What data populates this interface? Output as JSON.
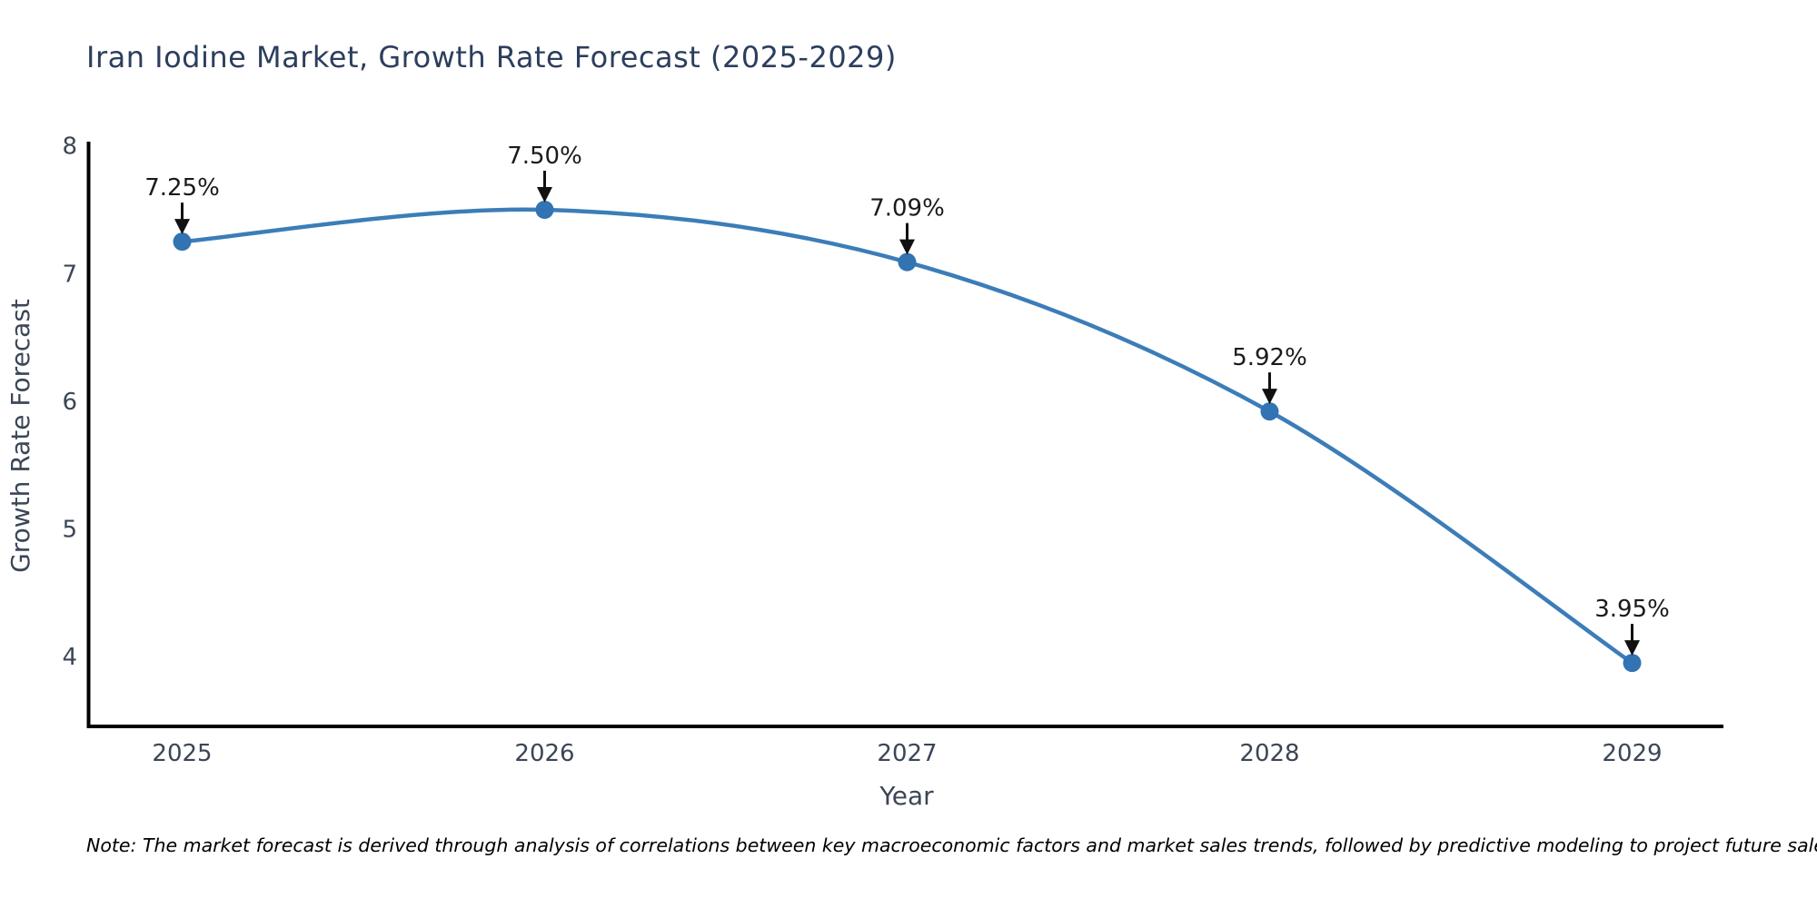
{
  "title": "Iran Iodine Market, Growth Rate Forecast (2025-2029)",
  "note": "Note: The market forecast is derived through analysis of correlations between key macroeconomic factors and market sales trends, followed by predictive modeling to project future sales.",
  "chart_data": {
    "type": "line",
    "title": "Iran Iodine Market, Growth Rate Forecast (2025-2029)",
    "xlabel": "Year",
    "ylabel": "Growth Rate Forecast",
    "x": [
      2025,
      2026,
      2027,
      2028,
      2029
    ],
    "y": [
      7.25,
      7.5,
      7.09,
      5.92,
      3.95
    ],
    "point_labels": [
      "7.25%",
      "7.50%",
      "7.09%",
      "5.92%",
      "3.95%"
    ],
    "x_tick_labels": [
      "2025",
      "2026",
      "2027",
      "2028",
      "2029"
    ],
    "y_tick_values": [
      8,
      7,
      6,
      5,
      4
    ],
    "y_tick_labels": [
      "8",
      "7",
      "6",
      "5",
      "4"
    ],
    "ylim": [
      3.45,
      8
    ],
    "grid": false,
    "legend": "none",
    "line_smooth": true,
    "colors": {
      "line": "#3c7db8",
      "marker": "#3173b3",
      "annotation_text": "#1a1a1a",
      "arrow": "#111111",
      "axis_line": "#000000",
      "tick_label": "#3b4656",
      "axis_title": "#3b4656",
      "title": "#2c3e5d"
    }
  }
}
